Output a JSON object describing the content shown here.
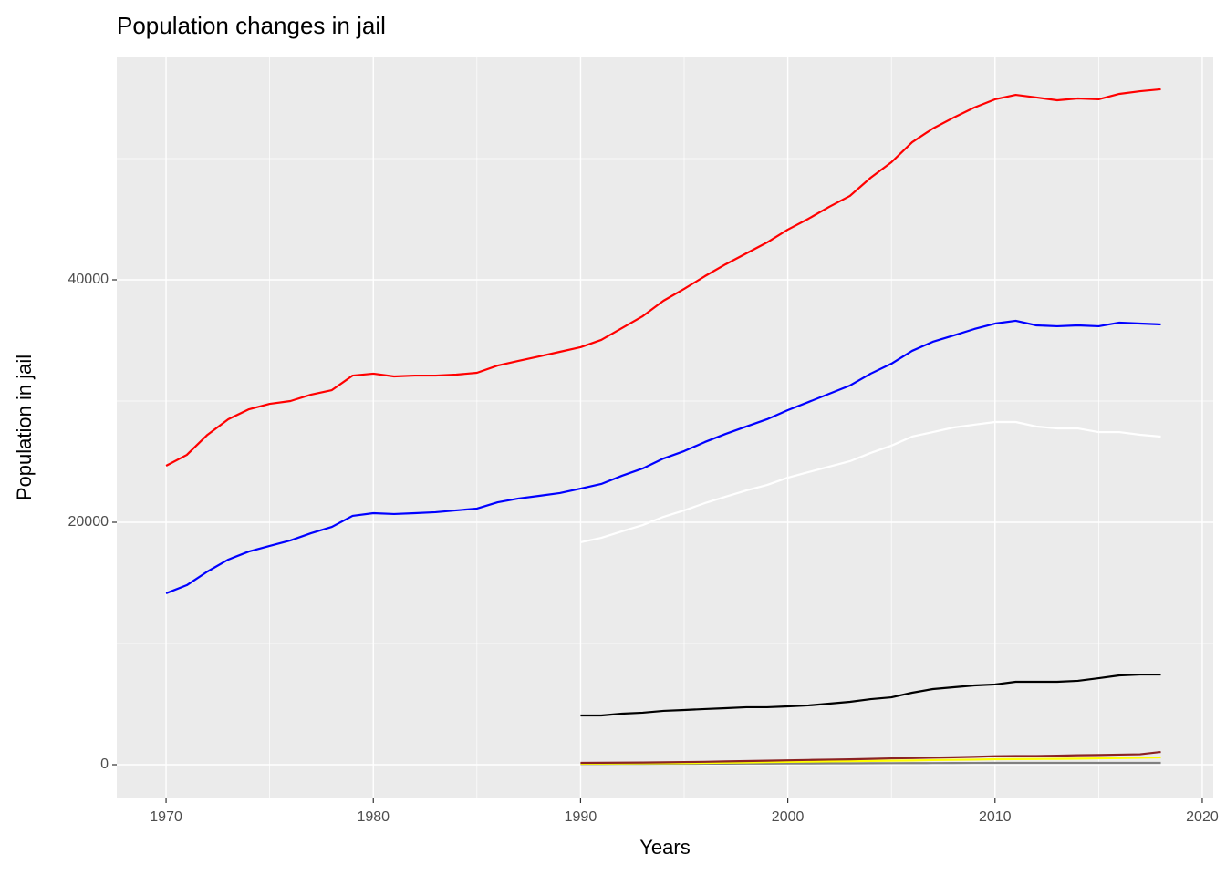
{
  "chart_data": {
    "type": "line",
    "title": "Population changes in jail",
    "x_label": "Years",
    "y_label": "Population in jail",
    "x": [
      1970,
      1971,
      1972,
      1973,
      1974,
      1975,
      1976,
      1977,
      1978,
      1979,
      1980,
      1981,
      1982,
      1983,
      1984,
      1985,
      1986,
      1987,
      1988,
      1989,
      1990,
      1991,
      1992,
      1993,
      1994,
      1995,
      1996,
      1997,
      1998,
      1999,
      2000,
      2001,
      2002,
      2003,
      2004,
      2005,
      2006,
      2007,
      2008,
      2009,
      2010,
      2011,
      2012,
      2013,
      2014,
      2015,
      2016,
      2017,
      2018
    ],
    "series": [
      {
        "color": "red",
        "values": [
          24660,
          25560,
          27220,
          28500,
          29320,
          29770,
          30000,
          30530,
          30900,
          32100,
          32260,
          32030,
          32100,
          32100,
          32180,
          32330,
          32930,
          33310,
          33680,
          34060,
          34440,
          35040,
          36020,
          37000,
          38270,
          39250,
          40300,
          41280,
          42180,
          43080,
          44140,
          45040,
          46020,
          46920,
          48420,
          49700,
          51350,
          52480,
          53380,
          54210,
          54890,
          55260,
          55040,
          54810,
          54960,
          54890,
          55340,
          55560,
          55720
        ]
      },
      {
        "color": "blue",
        "values": [
          14140,
          14810,
          15940,
          16920,
          17590,
          18050,
          18500,
          19100,
          19620,
          20530,
          20750,
          20680,
          20750,
          20830,
          20980,
          21130,
          21650,
          21960,
          22180,
          22410,
          22780,
          23160,
          23840,
          24440,
          25260,
          25870,
          26620,
          27290,
          27900,
          28500,
          29250,
          29920,
          30600,
          31280,
          32260,
          33080,
          34140,
          34890,
          35410,
          35940,
          36390,
          36620,
          36240,
          36170,
          36240,
          36170,
          36470,
          36390,
          36320
        ]
      },
      {
        "color": "white",
        "values": [
          null,
          null,
          null,
          null,
          null,
          null,
          null,
          null,
          null,
          null,
          null,
          null,
          null,
          null,
          null,
          null,
          null,
          null,
          null,
          null,
          18350,
          18720,
          19250,
          19770,
          20450,
          20980,
          21580,
          22110,
          22630,
          23080,
          23680,
          24140,
          24590,
          25040,
          25720,
          26320,
          27070,
          27440,
          27820,
          28050,
          28270,
          28270,
          27900,
          27740,
          27740,
          27440,
          27440,
          27220,
          27070
        ]
      },
      {
        "color": "black",
        "values": [
          null,
          null,
          null,
          null,
          null,
          null,
          null,
          null,
          null,
          null,
          null,
          null,
          null,
          null,
          null,
          null,
          null,
          null,
          null,
          null,
          4060,
          4060,
          4210,
          4290,
          4440,
          4510,
          4590,
          4660,
          4740,
          4740,
          4810,
          4890,
          5040,
          5190,
          5410,
          5560,
          5940,
          6240,
          6390,
          6540,
          6620,
          6840,
          6840,
          6840,
          6920,
          7140,
          7370,
          7440,
          7440
        ]
      },
      {
        "color": "gray",
        "values": [
          null,
          null,
          null,
          null,
          null,
          null,
          null,
          null,
          null,
          null,
          null,
          null,
          null,
          null,
          null,
          null,
          null,
          null,
          null,
          null,
          50,
          55,
          60,
          65,
          70,
          75,
          80,
          85,
          90,
          95,
          100,
          105,
          110,
          115,
          120,
          125,
          130,
          135,
          140,
          145,
          150,
          150,
          150,
          150,
          150,
          150,
          150,
          150,
          150
        ]
      },
      {
        "color": "yellow",
        "values": [
          null,
          null,
          null,
          null,
          null,
          null,
          null,
          null,
          null,
          null,
          null,
          null,
          null,
          null,
          null,
          null,
          null,
          null,
          null,
          null,
          80,
          90,
          100,
          110,
          120,
          130,
          150,
          170,
          190,
          210,
          230,
          250,
          270,
          290,
          310,
          330,
          350,
          380,
          400,
          420,
          450,
          460,
          470,
          480,
          500,
          520,
          540,
          570,
          600
        ]
      },
      {
        "color": "#8b2323",
        "values": [
          null,
          null,
          null,
          null,
          null,
          null,
          null,
          null,
          null,
          null,
          null,
          null,
          null,
          null,
          null,
          null,
          null,
          null,
          null,
          null,
          150,
          160,
          170,
          180,
          200,
          220,
          240,
          270,
          300,
          330,
          360,
          390,
          420,
          440,
          480,
          520,
          540,
          580,
          610,
          650,
          700,
          720,
          720,
          740,
          780,
          800,
          830,
          860,
          1050
        ]
      }
    ],
    "xlim": [
      1967.62,
      2020.53
    ],
    "xticks": [
      1970,
      1980,
      1990,
      2000,
      2010,
      2020
    ],
    "ylim": [
      -2782,
      58421
    ],
    "yticks": [
      0,
      20000,
      40000
    ],
    "grid": true
  }
}
